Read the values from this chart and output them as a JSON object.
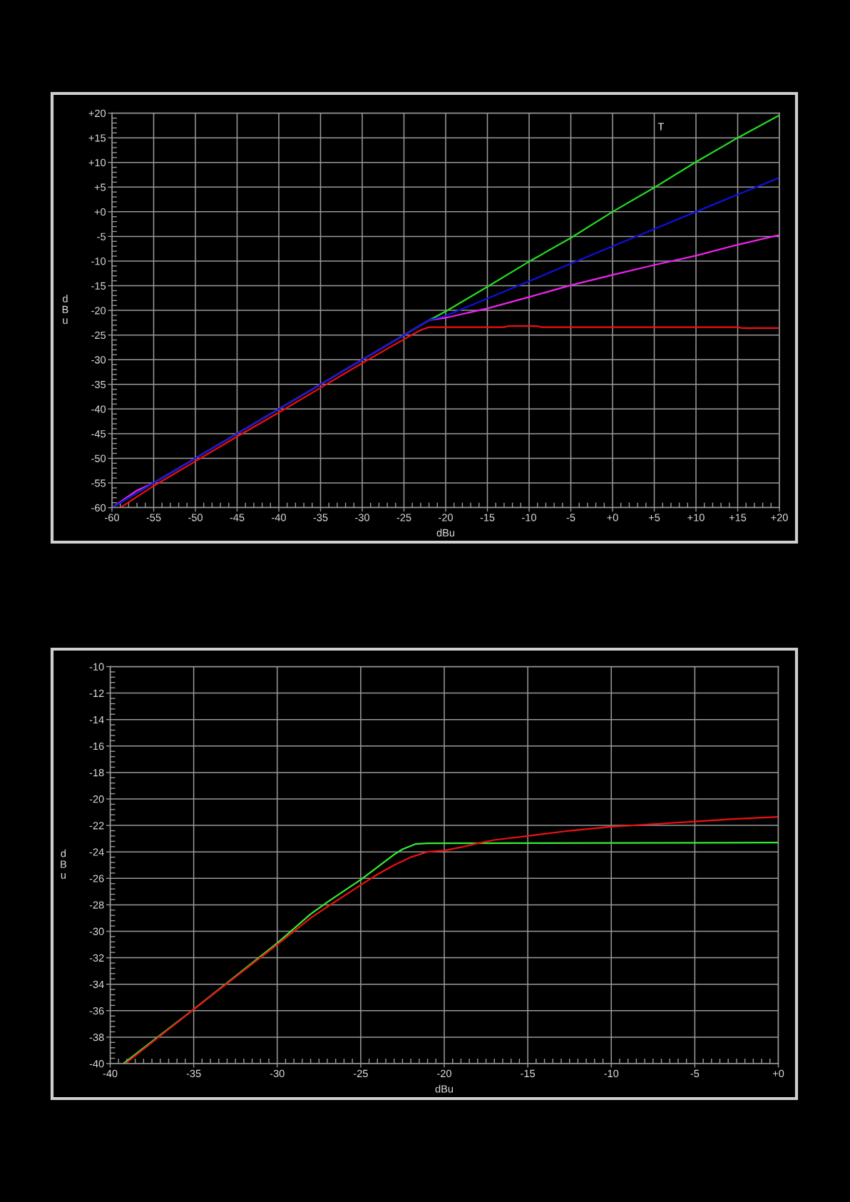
{
  "chart_data": [
    {
      "type": "line",
      "xlabel": "dBu",
      "ylabel": "dBu",
      "grid": true,
      "line_style": "solid",
      "xlim": [
        -60,
        20
      ],
      "ylim": [
        -60,
        20
      ],
      "xticks": [
        -60,
        -55,
        -50,
        -45,
        -40,
        -35,
        -30,
        -25,
        -20,
        -15,
        -10,
        -5,
        {
          "value": 0,
          "label": "+0"
        },
        {
          "value": 5,
          "label": "+5"
        },
        {
          "value": 10,
          "label": "+10"
        },
        {
          "value": 15,
          "label": "+15"
        },
        {
          "value": 20,
          "label": "+20"
        }
      ],
      "yticks": [
        -60,
        -55,
        -50,
        -45,
        -40,
        -35,
        -30,
        -25,
        -20,
        -15,
        -10,
        -5,
        {
          "value": 0,
          "label": "+0"
        },
        {
          "value": 5,
          "label": "+5"
        },
        {
          "value": 10,
          "label": "+10"
        },
        {
          "value": 15,
          "label": "+15"
        },
        {
          "value": 20,
          "label": "+20"
        }
      ],
      "annotations": [
        "T"
      ],
      "series": [
        {
          "color": "#22dd22",
          "x": [
            -60,
            -40,
            -22,
            -20,
            -15,
            -10,
            -5,
            0,
            5,
            10,
            15,
            20
          ],
          "values": [
            -60,
            -40,
            -22,
            -20.2,
            -15.2,
            -10.1,
            -5.3,
            0,
            4.9,
            10.1,
            15,
            19.6
          ]
        },
        {
          "color": "#ee22ee",
          "x": [
            -60,
            -57,
            -55,
            -40,
            -22,
            -20,
            -15,
            -10,
            -5,
            0,
            5,
            10,
            15,
            20
          ],
          "values": [
            -60,
            -56.5,
            -55,
            -40,
            -22,
            -21.5,
            -19.6,
            -17.3,
            -14.9,
            -12.8,
            -10.8,
            -8.9,
            -6.7,
            -4.7
          ]
        },
        {
          "color": "#1010e0",
          "x": [
            -60,
            -40,
            -22,
            -20,
            -15,
            -10,
            -5,
            0,
            5,
            10,
            15,
            20
          ],
          "values": [
            -60,
            -40,
            -22,
            -21.1,
            -17.6,
            -14.1,
            -10.5,
            -7,
            -3.5,
            0,
            3.5,
            6.9
          ]
        },
        {
          "color": "#ee1111",
          "x": [
            -59,
            -55,
            -50,
            -45,
            -40,
            -35,
            -30,
            -26,
            -25,
            -24,
            -23,
            -22,
            -13,
            -12.5,
            -9,
            -8.5,
            15,
            15.5,
            20
          ],
          "values": [
            -60,
            -55.6,
            -50.6,
            -45.6,
            -40.7,
            -35.7,
            -30.7,
            -26.8,
            -25.9,
            -24.9,
            -24,
            -23.4,
            -23.4,
            -23.2,
            -23.2,
            -23.4,
            -23.4,
            -23.6,
            -23.6
          ]
        }
      ]
    },
    {
      "type": "line",
      "xlabel": "dBu",
      "ylabel": "dBu",
      "grid": true,
      "line_style": "solid",
      "xlim": [
        -40,
        0
      ],
      "ylim": [
        -40,
        -10
      ],
      "xticks": [
        -40,
        -35,
        -30,
        -25,
        -20,
        -15,
        -10,
        -5,
        {
          "value": 0,
          "label": "+0"
        }
      ],
      "yticks": [
        -40,
        -38,
        -36,
        -34,
        -32,
        -30,
        -28,
        -26,
        -24,
        -22,
        -20,
        -18,
        -16,
        -14,
        -12,
        -10
      ],
      "series": [
        {
          "color": "#33ee33",
          "x": [
            -39.2,
            -35,
            -30,
            -28,
            -27,
            -25,
            -23,
            -22.5,
            -21.7,
            -21,
            0
          ],
          "values": [
            -40,
            -35.9,
            -30.9,
            -28.7,
            -27.8,
            -26.1,
            -24.2,
            -23.8,
            -23.4,
            -23.35,
            -23.3
          ]
        },
        {
          "color": "#ee1111",
          "x": [
            -39.1,
            -35,
            -30,
            -28,
            -27,
            -25,
            -24,
            -23,
            -22,
            -21,
            -20,
            -19,
            -18,
            -17,
            -15,
            -12.5,
            -10,
            -7.5,
            -5,
            -2.5,
            0
          ],
          "values": [
            -40,
            -35.9,
            -31,
            -29,
            -28.15,
            -26.5,
            -25.7,
            -25,
            -24.4,
            -24,
            -23.9,
            -23.65,
            -23.35,
            -23.1,
            -22.8,
            -22.4,
            -22.1,
            -21.9,
            -21.7,
            -21.5,
            -21.35
          ]
        }
      ]
    }
  ]
}
